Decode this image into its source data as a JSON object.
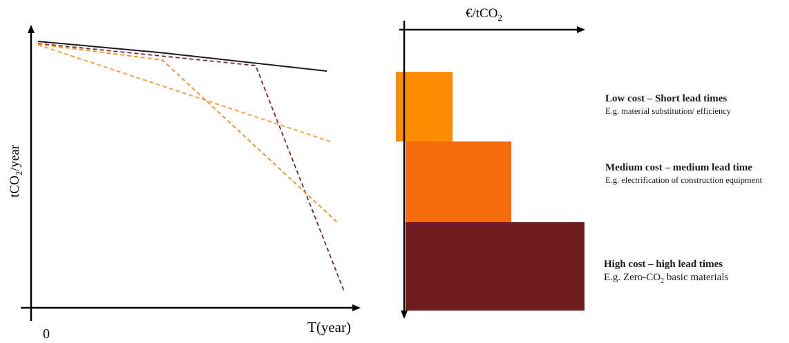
{
  "left_chart": {
    "ylabel_prefix": "tCO",
    "ylabel_sub": "2",
    "ylabel_suffix": "/year",
    "xlabel": "T(year)",
    "origin_label": "0",
    "series": [
      {
        "style": "solid",
        "color": "#1a1a1a"
      },
      {
        "style": "dashed",
        "color": "#7b2626"
      },
      {
        "style": "dashed",
        "color": "#f08a1c"
      },
      {
        "style": "dashed",
        "color": "#f59b33"
      }
    ]
  },
  "right_chart": {
    "axis_label_prefix": "€/tCO",
    "axis_label_sub": "2",
    "bars": [
      {
        "color": "#ff8c00",
        "title": "Low cost – Short lead times",
        "desc": "E.g. material substitution/ efficiency"
      },
      {
        "color": "#f76c0a",
        "title": "Medium cost – medium lead time",
        "desc": "E.g. electrification of construction equipment"
      },
      {
        "color": "#6e1c1c",
        "title": "High cost – high lead times",
        "desc_prefix": "E.g. Zero-CO",
        "desc_sub": "2",
        "desc_suffix": " basic materials"
      }
    ]
  }
}
